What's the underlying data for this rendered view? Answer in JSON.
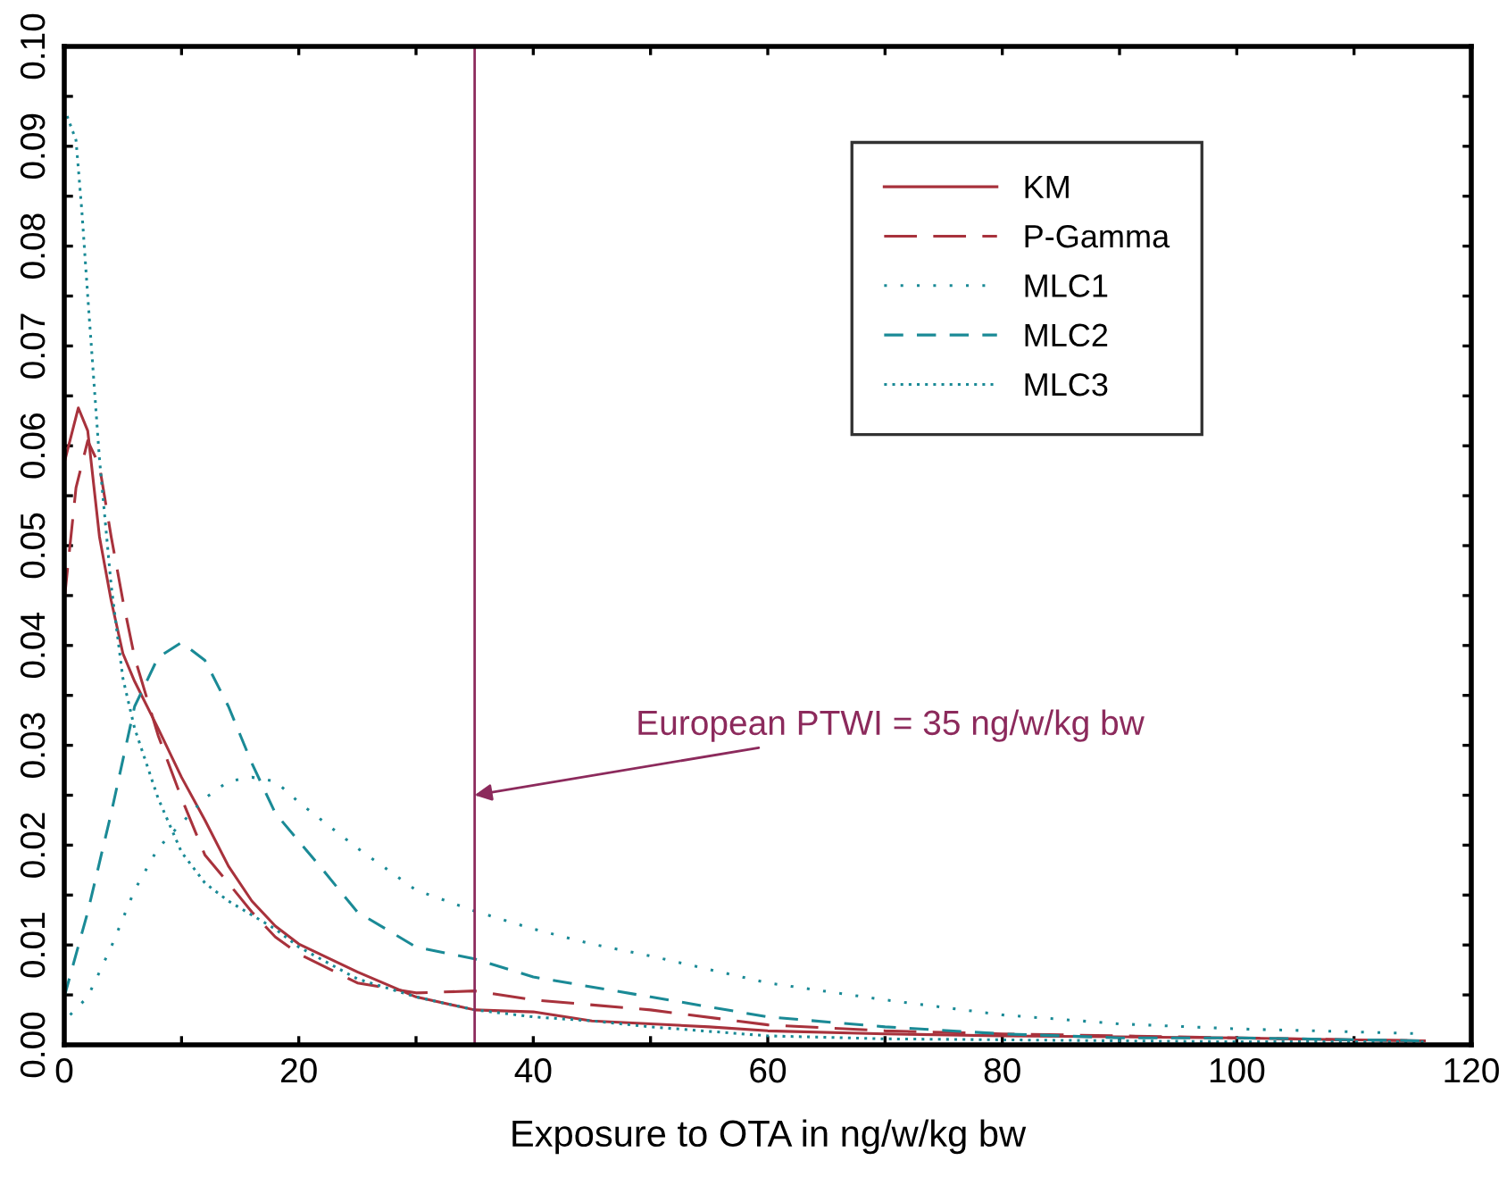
{
  "chart_data": {
    "type": "line",
    "xlabel": "Exposure to OTA in ng/w/kg bw",
    "xlim": [
      0,
      120
    ],
    "xticks": [
      0,
      {
        "value": 10,
        "label": null
      },
      20,
      {
        "value": 30,
        "label": null
      },
      40,
      {
        "value": 50,
        "label": null
      },
      60,
      {
        "value": 70,
        "label": null
      },
      80,
      {
        "value": 90,
        "label": null
      },
      100,
      {
        "value": 110,
        "label": null
      },
      120
    ],
    "ylim": [
      0,
      0.1
    ],
    "yticks": [
      {
        "value": 0,
        "label": "0.00"
      },
      {
        "value": 0.005,
        "label": null
      },
      {
        "value": 0.01,
        "label": "0.01"
      },
      {
        "value": 0.015,
        "label": null
      },
      {
        "value": 0.02,
        "label": "0.02"
      },
      {
        "value": 0.025,
        "label": null
      },
      {
        "value": 0.03,
        "label": "0.03"
      },
      {
        "value": 0.035,
        "label": null
      },
      {
        "value": 0.04,
        "label": "0.04"
      },
      {
        "value": 0.045,
        "label": null
      },
      {
        "value": 0.05,
        "label": "0.05"
      },
      {
        "value": 0.055,
        "label": null
      },
      {
        "value": 0.06,
        "label": "0.06"
      },
      {
        "value": 0.065,
        "label": null
      },
      {
        "value": 0.07,
        "label": "0.07"
      },
      {
        "value": 0.075,
        "label": null
      },
      {
        "value": 0.08,
        "label": "0.08"
      },
      {
        "value": 0.085,
        "label": null
      },
      {
        "value": 0.09,
        "label": "0.09"
      },
      {
        "value": 0.095,
        "label": null
      },
      {
        "value": 0.1,
        "label": "0.10"
      }
    ],
    "grid": false,
    "legend": "top right",
    "marker": "none",
    "series": [
      {
        "name": "KM",
        "color": "#a8323c",
        "line_style": "solid",
        "x": [
          0,
          1.2,
          2,
          3,
          4,
          5,
          6,
          8,
          10,
          12,
          14,
          16,
          18,
          20,
          25,
          30,
          35,
          40,
          45,
          50,
          55,
          60,
          70,
          80,
          90,
          100,
          110,
          116
        ],
        "values": [
          0.0583,
          0.0638,
          0.0615,
          0.0509,
          0.0445,
          0.0392,
          0.0364,
          0.0317,
          0.0268,
          0.0225,
          0.0179,
          0.0144,
          0.0119,
          0.0101,
          0.0073,
          0.0048,
          0.0035,
          0.0033,
          0.0024,
          0.0021,
          0.0018,
          0.0014,
          0.0011,
          0.0009,
          0.0008,
          0.0007,
          0.0005,
          0.0004
        ]
      },
      {
        "name": "P-Gamma",
        "color": "#a8323c",
        "line_style": "longdash",
        "x": [
          0,
          1,
          2,
          3,
          4,
          5,
          6,
          8,
          10,
          12,
          14,
          16,
          18,
          20,
          25,
          30,
          35,
          40,
          50,
          60,
          70,
          80,
          90,
          100,
          110,
          116
        ],
        "values": [
          0.0445,
          0.0558,
          0.0605,
          0.058,
          0.0509,
          0.0445,
          0.0388,
          0.031,
          0.0247,
          0.019,
          0.0162,
          0.0133,
          0.0108,
          0.0091,
          0.0062,
          0.0052,
          0.0054,
          0.0045,
          0.0035,
          0.002,
          0.0014,
          0.0011,
          0.0009,
          0.0007,
          0.0005,
          0.0004
        ]
      },
      {
        "name": "MLC1",
        "color": "#1a8a96",
        "line_style": "sparsedot",
        "x": [
          0.5,
          2,
          4,
          6,
          8,
          10,
          12,
          14,
          16,
          18,
          20,
          25,
          30,
          35,
          40,
          45,
          50,
          60,
          70,
          80,
          90,
          100,
          110,
          116
        ],
        "values": [
          0.003,
          0.0048,
          0.0098,
          0.0155,
          0.0197,
          0.0222,
          0.0247,
          0.0264,
          0.0268,
          0.0264,
          0.0243,
          0.0197,
          0.0155,
          0.0134,
          0.0116,
          0.0101,
          0.0089,
          0.0062,
          0.0045,
          0.003,
          0.0021,
          0.0016,
          0.0013,
          0.0011
        ]
      },
      {
        "name": "MLC2",
        "color": "#1a8a96",
        "line_style": "dashed",
        "x": [
          0,
          2,
          4,
          6,
          8,
          10,
          12,
          14,
          16,
          18,
          20,
          22,
          25,
          30,
          35,
          40,
          45,
          50,
          60,
          70,
          80,
          90,
          100,
          116
        ],
        "values": [
          0.0048,
          0.0133,
          0.0232,
          0.0339,
          0.0388,
          0.0403,
          0.0385,
          0.0339,
          0.0282,
          0.0232,
          0.0204,
          0.0176,
          0.0133,
          0.0098,
          0.0086,
          0.0068,
          0.0058,
          0.0048,
          0.0028,
          0.0018,
          0.0011,
          0.0007,
          0.0007,
          0.0004
        ]
      },
      {
        "name": "MLC3",
        "color": "#1a8a96",
        "line_style": "dotted",
        "x": [
          0,
          1,
          1.5,
          2,
          3,
          4,
          5,
          6,
          8,
          10,
          12,
          14,
          16,
          18,
          20,
          25,
          30,
          35,
          40,
          45,
          50,
          60,
          70,
          80,
          100,
          116
        ],
        "values": [
          0.0938,
          0.0906,
          0.0835,
          0.075,
          0.0587,
          0.046,
          0.0367,
          0.0317,
          0.0247,
          0.0193,
          0.0162,
          0.0144,
          0.013,
          0.0116,
          0.0098,
          0.0066,
          0.0048,
          0.0035,
          0.0028,
          0.0024,
          0.0018,
          0.0009,
          0.0006,
          0.0005,
          0.0003,
          0.0003
        ]
      }
    ],
    "ref_lines": [
      {
        "axis": "x",
        "value": 35,
        "color": "#8c2a5c",
        "line_style": "solid"
      }
    ],
    "annotations": [
      {
        "text": "European PTWI = 35 ng/w/kg bw",
        "x": 35,
        "y": 0.025
      }
    ]
  }
}
